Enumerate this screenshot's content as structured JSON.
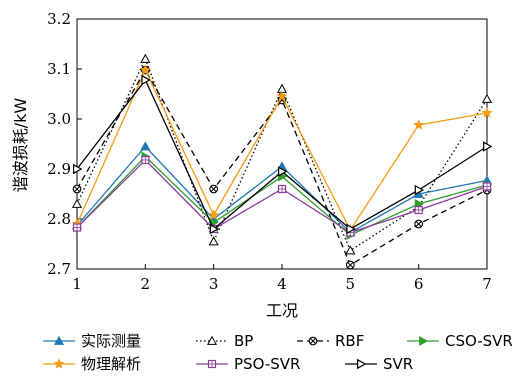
{
  "chart_data": {
    "type": "line",
    "xlabel": "工况",
    "ylabel": "谐波损耗/kW",
    "x": [
      1,
      2,
      3,
      4,
      5,
      6,
      7
    ],
    "xlim": [
      1,
      7
    ],
    "ylim": [
      2.7,
      3.2
    ],
    "yticks": [
      "2.7",
      "2.8",
      "2.9",
      "3.0",
      "3.1",
      "3.2"
    ],
    "xticks": [
      "1",
      "2",
      "3",
      "4",
      "5",
      "6",
      "7"
    ],
    "grid": false,
    "legend_position": "bottom",
    "series": [
      {
        "name": "实际测量",
        "color": "#1f77b4",
        "dash": "solid",
        "marker": "triangle-filled",
        "values": [
          2.787,
          2.945,
          2.8,
          2.905,
          2.773,
          2.85,
          2.877
        ]
      },
      {
        "name": "BP",
        "color": "#000000",
        "dash": "dotted",
        "marker": "triangle-open",
        "values": [
          2.83,
          3.12,
          2.755,
          3.06,
          2.737,
          2.825,
          3.04
        ]
      },
      {
        "name": "RBF",
        "color": "#000000",
        "dash": "dashed",
        "marker": "circle-x",
        "values": [
          2.86,
          3.098,
          2.86,
          3.038,
          2.708,
          2.79,
          2.858
        ]
      },
      {
        "name": "CSO-SVR",
        "color": "#2ca02c",
        "dash": "solid",
        "marker": "triangle-right-filled",
        "values": [
          2.783,
          2.925,
          2.793,
          2.885,
          2.768,
          2.83,
          2.868
        ]
      },
      {
        "name": "物理解析",
        "color": "#f39c12",
        "dash": "solid",
        "marker": "star",
        "values": [
          2.79,
          3.098,
          2.808,
          3.045,
          2.778,
          2.988,
          3.012
        ]
      },
      {
        "name": "PSO-SVR",
        "color": "#8e3a9e",
        "dash": "solid",
        "marker": "square-open",
        "values": [
          2.783,
          2.918,
          2.78,
          2.86,
          2.773,
          2.818,
          2.865
        ]
      },
      {
        "name": "SVR",
        "color": "#000000",
        "dash": "solid",
        "marker": "triangle-right-open",
        "values": [
          2.9,
          3.078,
          2.78,
          2.895,
          2.78,
          2.858,
          2.945
        ]
      }
    ],
    "legend_rows": [
      [
        "实际测量",
        "BP",
        "RBF",
        "CSO-SVR"
      ],
      [
        "物理解析",
        "PSO-SVR",
        "SVR"
      ]
    ]
  }
}
